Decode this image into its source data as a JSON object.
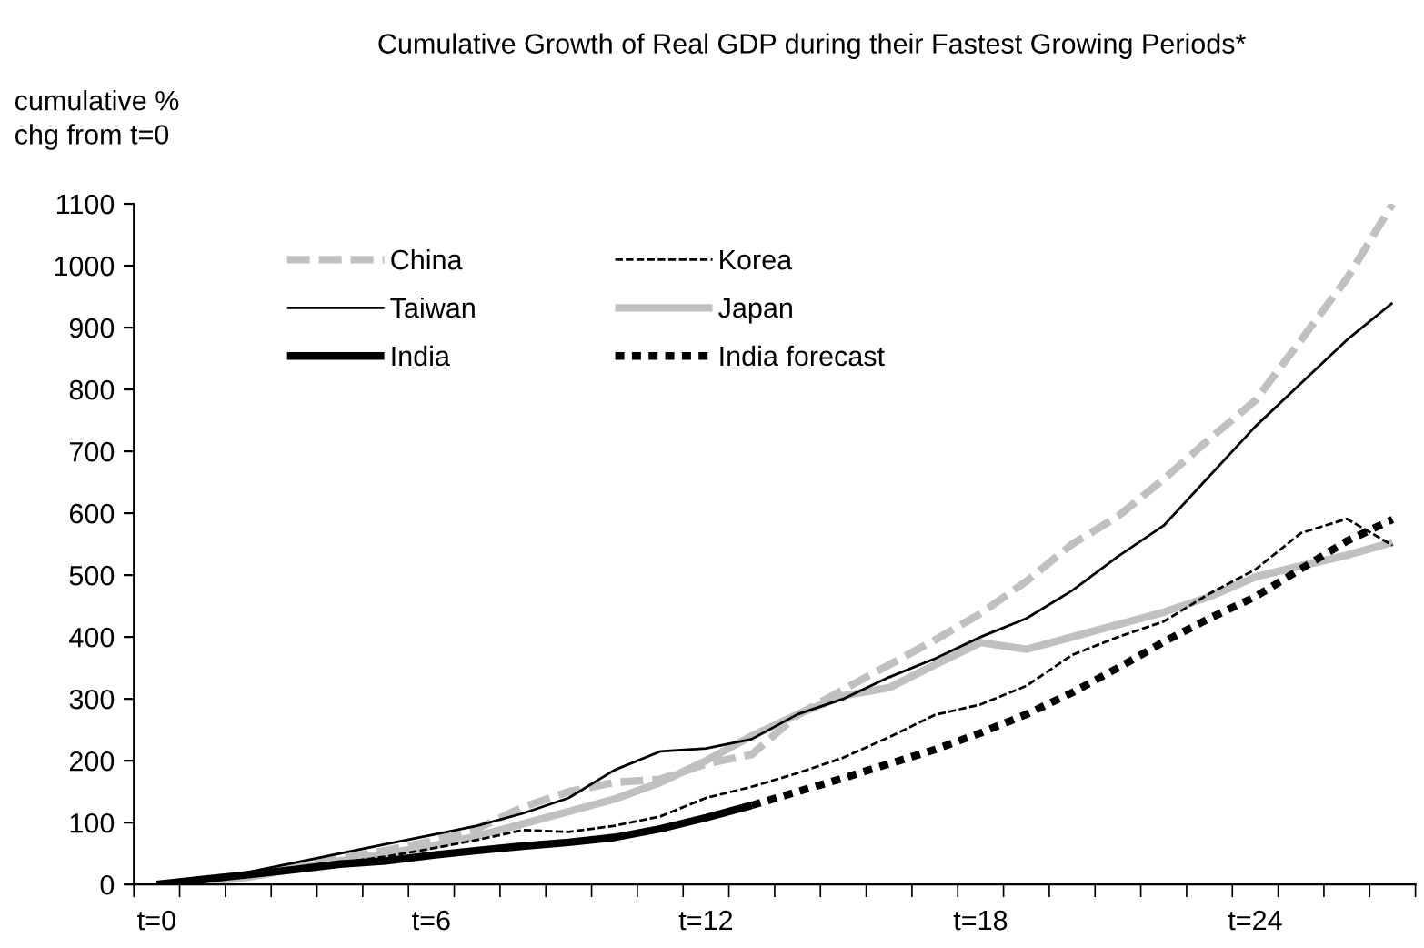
{
  "chart_data": {
    "type": "line",
    "title": "Cumulative Growth of Real GDP during their Fastest Growing Periods*",
    "ylabel": "cumulative %\nchg from t=0",
    "categories": [
      "t=0",
      null,
      null,
      null,
      null,
      null,
      "t=6",
      null,
      null,
      null,
      null,
      null,
      "t=12",
      null,
      null,
      null,
      null,
      null,
      "t=18",
      null,
      null,
      null,
      null,
      null,
      "t=24",
      null,
      null,
      null
    ],
    "series": [
      {
        "name": "China",
        "color": "#c0c0c0",
        "line_style": "dashed",
        "values": [
          0,
          5,
          15,
          28,
          42,
          55,
          70,
          90,
          125,
          150,
          165,
          170,
          195,
          210,
          274,
          315,
          355,
          395,
          438,
          490,
          550,
          595,
          655,
          720,
          782,
          880,
          979,
          1100
        ]
      },
      {
        "name": "Korea",
        "color": "#000000",
        "line_style": "dashed",
        "values": [
          0,
          5,
          13,
          25,
          35,
          45,
          58,
          72,
          88,
          85,
          95,
          110,
          140,
          158,
          180,
          205,
          238,
          274,
          291,
          321,
          371,
          400,
          425,
          470,
          509,
          568,
          591,
          548
        ]
      },
      {
        "name": "Taiwan",
        "color": "#000000",
        "line_style": "solid",
        "values": [
          0,
          8,
          20,
          35,
          50,
          65,
          80,
          95,
          115,
          140,
          185,
          215,
          220,
          235,
          275,
          300,
          335,
          365,
          400,
          430,
          475,
          530,
          580,
          660,
          740,
          810,
          880,
          940
        ]
      },
      {
        "name": "Japan",
        "color": "#c0c0c0",
        "line_style": "solid",
        "values": [
          0,
          3,
          12,
          25,
          38,
          50,
          62,
          78,
          98,
          118,
          138,
          165,
          200,
          240,
          275,
          305,
          318,
          355,
          391,
          380,
          400,
          420,
          440,
          465,
          497,
          515,
          532,
          553
        ]
      },
      {
        "name": "India",
        "color": "#000000",
        "line_style": "solid",
        "values": [
          0,
          8,
          16,
          24,
          33,
          38,
          47,
          55,
          62,
          68,
          76,
          90,
          108,
          128,
          null,
          null,
          null,
          null,
          null,
          null,
          null,
          null,
          null,
          null,
          null,
          null,
          null,
          null
        ]
      },
      {
        "name": "India forecast",
        "color": "#000000",
        "line_style": "dotted",
        "values": [
          null,
          null,
          null,
          null,
          null,
          null,
          null,
          null,
          null,
          null,
          null,
          null,
          null,
          128,
          150,
          172,
          195,
          218,
          245,
          275,
          310,
          350,
          392,
          430,
          465,
          510,
          555,
          590
        ]
      }
    ],
    "ylim": [
      0,
      1100
    ],
    "yticks": [
      0,
      100,
      200,
      300,
      400,
      500,
      600,
      700,
      800,
      900,
      1000,
      1100
    ],
    "grid": false,
    "legend": "top left"
  }
}
